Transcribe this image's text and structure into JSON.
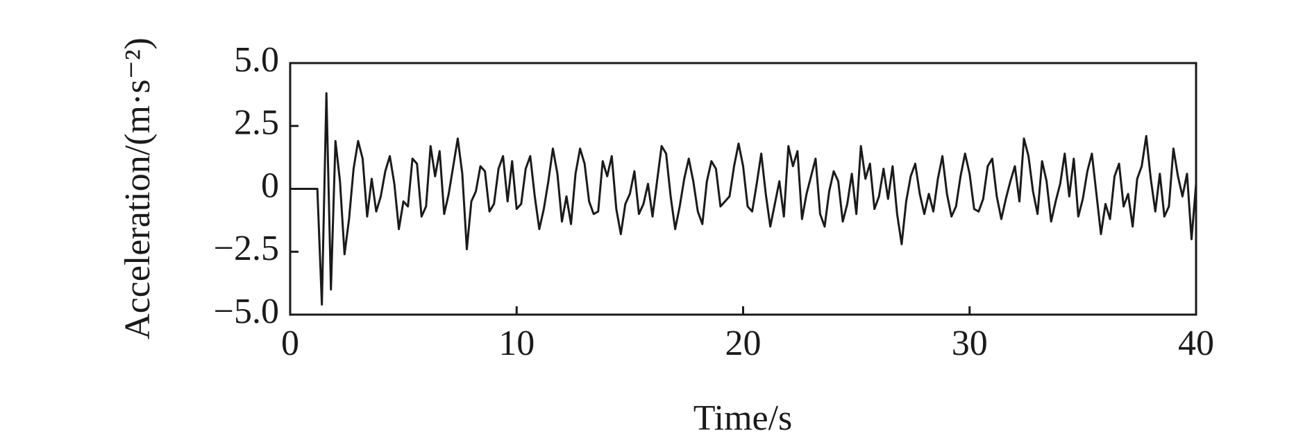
{
  "chart_data": {
    "type": "line",
    "x_label": "Time/s",
    "y_label": "Acceleration/(m·s⁻²)",
    "x": [
      0,
      0.2,
      0.4,
      0.6,
      0.8,
      1,
      1.2,
      1.4,
      1.6,
      1.8,
      2,
      2.2,
      2.4,
      2.6,
      2.8,
      3,
      3.2,
      3.4,
      3.6,
      3.8,
      4,
      4.2,
      4.4,
      4.6,
      4.8,
      5,
      5.2,
      5.4,
      5.6,
      5.8,
      6,
      6.2,
      6.4,
      6.6,
      6.8,
      7,
      7.2,
      7.4,
      7.6,
      7.8,
      8,
      8.2,
      8.4,
      8.6,
      8.8,
      9,
      9.2,
      9.4,
      9.6,
      9.8,
      10,
      10.2,
      10.4,
      10.6,
      10.8,
      11,
      11.2,
      11.4,
      11.6,
      11.8,
      12,
      12.2,
      12.4,
      12.6,
      12.8,
      13,
      13.2,
      13.4,
      13.6,
      13.8,
      14,
      14.2,
      14.4,
      14.6,
      14.8,
      15,
      15.2,
      15.4,
      15.6,
      15.8,
      16,
      16.2,
      16.4,
      16.6,
      16.8,
      17,
      17.2,
      17.4,
      17.6,
      17.8,
      18,
      18.2,
      18.4,
      18.6,
      18.8,
      19,
      19.2,
      19.4,
      19.6,
      19.8,
      20,
      20.2,
      20.4,
      20.6,
      20.8,
      21,
      21.2,
      21.4,
      21.6,
      21.8,
      22,
      22.2,
      22.4,
      22.6,
      22.8,
      23,
      23.2,
      23.4,
      23.6,
      23.8,
      24,
      24.2,
      24.4,
      24.6,
      24.8,
      25,
      25.2,
      25.4,
      25.6,
      25.8,
      26,
      26.2,
      26.4,
      26.6,
      26.8,
      27,
      27.2,
      27.4,
      27.6,
      27.8,
      28,
      28.2,
      28.4,
      28.6,
      28.8,
      29,
      29.2,
      29.4,
      29.6,
      29.8,
      30,
      30.2,
      30.4,
      30.6,
      30.8,
      31,
      31.2,
      31.4,
      31.6,
      31.8,
      32,
      32.2,
      32.4,
      32.6,
      32.8,
      33,
      33.2,
      33.4,
      33.6,
      33.8,
      34,
      34.2,
      34.4,
      34.6,
      34.8,
      35,
      35.2,
      35.4,
      35.6,
      35.8,
      36,
      36.2,
      36.4,
      36.6,
      36.8,
      37,
      37.2,
      37.4,
      37.6,
      37.8,
      38,
      38.2,
      38.4,
      38.6,
      38.8,
      39,
      39.2,
      39.4,
      39.6,
      39.8,
      40
    ],
    "series": [
      {
        "color": "#1a1a1a",
        "values": [
          0,
          0,
          0,
          0,
          0,
          0,
          0,
          -4.6,
          3.8,
          -4.0,
          1.9,
          0.3,
          -2.6,
          -1.2,
          0.8,
          1.9,
          1.2,
          -1.1,
          0.4,
          -0.9,
          -0.3,
          0.7,
          1.3,
          0.2,
          -1.6,
          -0.5,
          -0.7,
          1.2,
          1.0,
          -1.1,
          -0.7,
          1.7,
          0.5,
          1.5,
          -1.0,
          -0.2,
          0.9,
          2.0,
          0.6,
          -2.4,
          -0.5,
          -0.1,
          0.9,
          0.7,
          -0.9,
          -0.6,
          0.8,
          1.3,
          -0.5,
          1.1,
          -0.8,
          -0.6,
          0.8,
          1.3,
          -0.3,
          -1.6,
          -0.8,
          0.3,
          1.6,
          0.6,
          -1.3,
          -0.3,
          -1.4,
          0.6,
          1.6,
          1.0,
          -0.5,
          -1.0,
          -0.9,
          1.1,
          0.5,
          1.3,
          -0.8,
          -1.8,
          -0.6,
          -0.2,
          0.7,
          -1.0,
          -0.6,
          0.2,
          -1.1,
          0.3,
          1.7,
          1.4,
          -0.3,
          -1.6,
          -0.7,
          0.4,
          1.2,
          0.3,
          -0.9,
          -1.4,
          0.3,
          1.1,
          0.8,
          -0.7,
          -0.5,
          -0.3,
          0.9,
          1.8,
          0.9,
          -0.7,
          -0.9,
          0.2,
          1.4,
          -0.2,
          -1.5,
          -0.6,
          0.3,
          -1.1,
          1.7,
          0.9,
          1.5,
          -1.2,
          -0.2,
          0.5,
          1.2,
          -1.0,
          -1.5,
          -0.1,
          0.7,
          0.3,
          -1.3,
          -0.6,
          0.6,
          -1.0,
          1.7,
          0.4,
          1.0,
          -0.8,
          -0.3,
          0.8,
          -0.4,
          0.9,
          -1.0,
          -2.2,
          -0.5,
          0.5,
          1.0,
          -0.2,
          -1.0,
          -0.2,
          -0.9,
          0.4,
          1.3,
          -0.2,
          -1.1,
          -0.7,
          0.5,
          1.4,
          0.6,
          -0.8,
          -0.9,
          -0.4,
          0.9,
          1.2,
          -0.3,
          -1.2,
          -0.4,
          0.3,
          0.9,
          -0.5,
          2.0,
          1.3,
          -0.1,
          -1.0,
          1.1,
          0.3,
          -1.3,
          -0.5,
          0.2,
          1.4,
          -0.3,
          1.2,
          -1.1,
          -0.4,
          0.7,
          1.4,
          -0.2,
          -1.8,
          -0.6,
          -1.2,
          0.5,
          1.0,
          -0.7,
          -0.2,
          -1.5,
          0.4,
          0.9,
          2.1,
          0.4,
          -0.9,
          0.6,
          -1.1,
          -0.7,
          1.6,
          0.5,
          -0.3,
          0.6,
          -2.0,
          0.2
        ]
      }
    ],
    "xlim": [
      0,
      40
    ],
    "xticks": [
      0,
      10,
      20,
      30,
      40
    ],
    "ylim": [
      -5,
      5
    ],
    "yticks": [
      {
        "value": 5,
        "label": "5.0"
      },
      {
        "value": 2.5,
        "label": "2.5"
      },
      0,
      {
        "value": -2.5,
        "label": "−2.5"
      },
      {
        "value": -5,
        "label": "−5.0"
      }
    ],
    "grid": false
  }
}
